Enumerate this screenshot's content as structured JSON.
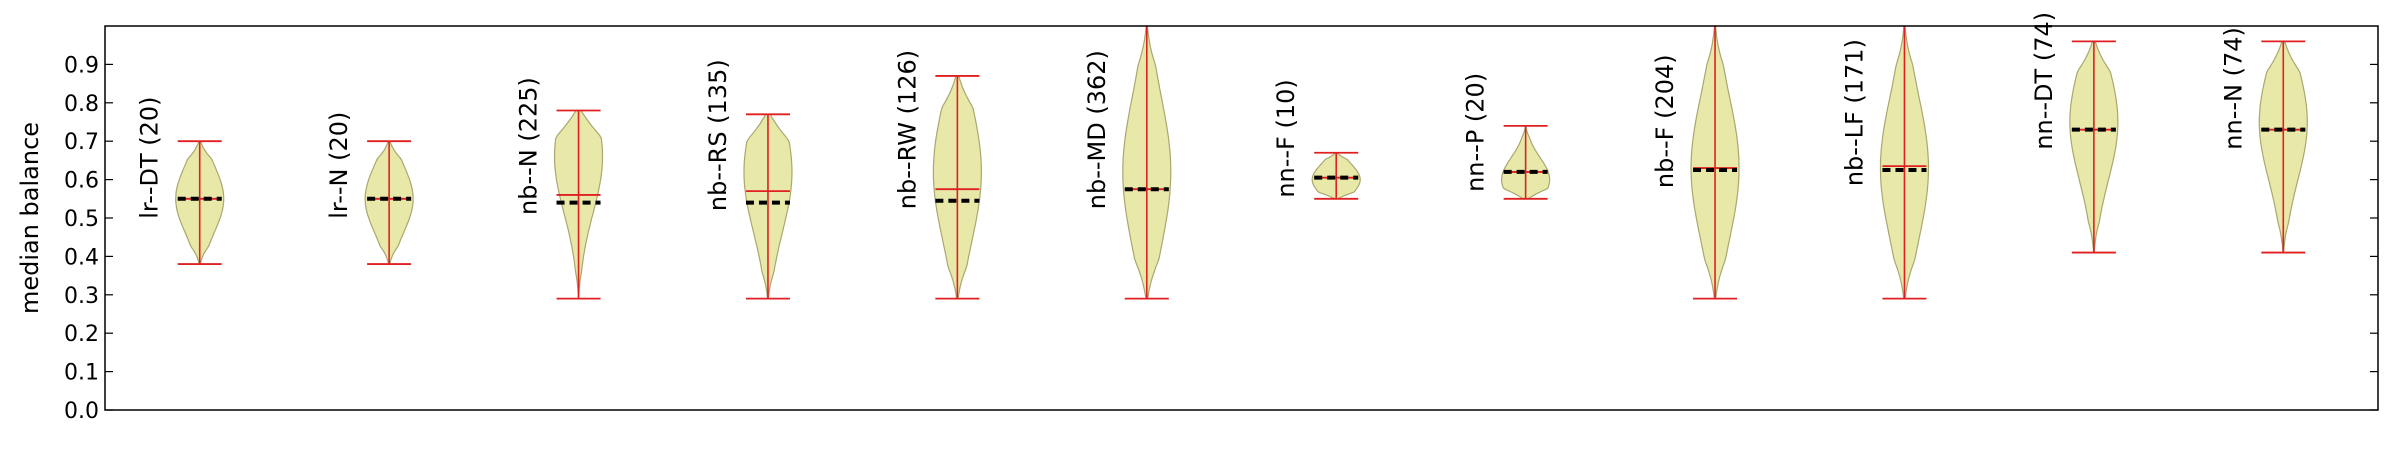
{
  "chart_data": {
    "type": "violin",
    "ylabel": "median balance",
    "ylim": [
      0.0,
      1.0
    ],
    "yticks": [
      "0.0",
      "0.1",
      "0.2",
      "0.3",
      "0.4",
      "0.5",
      "0.6",
      "0.7",
      "0.8",
      "0.9"
    ],
    "grid": false,
    "colors": {
      "body_fill": "#e8e8a8",
      "body_edge": "#a8a870",
      "whisker": "#e02020",
      "median": "#000000"
    },
    "series": [
      {
        "label": "lr--DT (20)",
        "min": 0.38,
        "max": 0.7,
        "mean": 0.55,
        "median": 0.55,
        "mode": 0.55,
        "spread": 0.55
      },
      {
        "label": "lr--N (20)",
        "min": 0.38,
        "max": 0.7,
        "mean": 0.55,
        "median": 0.55,
        "mode": 0.55,
        "spread": 0.55
      },
      {
        "label": "nb--N (225)",
        "min": 0.29,
        "max": 0.78,
        "mean": 0.56,
        "median": 0.54,
        "mode": 0.66,
        "spread": 0.6
      },
      {
        "label": "nb--RS (135)",
        "min": 0.29,
        "max": 0.77,
        "mean": 0.57,
        "median": 0.54,
        "mode": 0.62,
        "spread": 0.65
      },
      {
        "label": "nb--RW (126)",
        "min": 0.29,
        "max": 0.87,
        "mean": 0.575,
        "median": 0.545,
        "mode": 0.62,
        "spread": 0.62
      },
      {
        "label": "nb--MD (362)",
        "min": 0.29,
        "max": 1.0,
        "mean": 0.575,
        "median": 0.575,
        "mode": 0.62,
        "spread": 0.55
      },
      {
        "label": "nn--F (10)",
        "min": 0.55,
        "max": 0.67,
        "mean": 0.605,
        "median": 0.605,
        "mode": 0.6,
        "spread": 0.7
      },
      {
        "label": "nn--P (20)",
        "min": 0.55,
        "max": 0.74,
        "mean": 0.62,
        "median": 0.62,
        "mode": 0.6,
        "spread": 0.6
      },
      {
        "label": "nb--F (204)",
        "min": 0.29,
        "max": 1.0,
        "mean": 0.63,
        "median": 0.625,
        "mode": 0.63,
        "spread": 0.52
      },
      {
        "label": "nb--LF (171)",
        "min": 0.29,
        "max": 1.0,
        "mean": 0.635,
        "median": 0.625,
        "mode": 0.63,
        "spread": 0.52
      },
      {
        "label": "nn--DT (74)",
        "min": 0.41,
        "max": 0.96,
        "mean": 0.73,
        "median": 0.73,
        "mode": 0.75,
        "spread": 0.55
      },
      {
        "label": "nn--N (74)",
        "min": 0.41,
        "max": 0.96,
        "mean": 0.73,
        "median": 0.73,
        "mode": 0.75,
        "spread": 0.55
      }
    ]
  }
}
